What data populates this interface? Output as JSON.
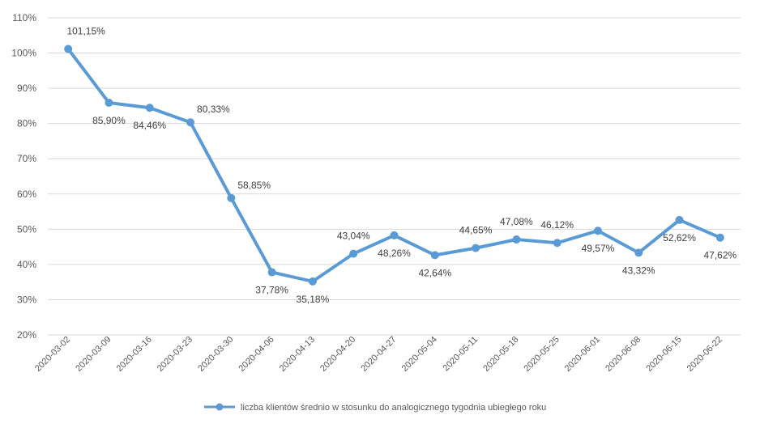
{
  "chart_data": {
    "type": "line",
    "title": "",
    "xlabel": "",
    "ylabel": "",
    "categories": [
      "2020-03-02",
      "2020-03-09",
      "2020-03-16",
      "2020-03-23",
      "2020-03-30",
      "2020-04-06",
      "2020-04-13",
      "2020-04-20",
      "2020-04-27",
      "2020-05-04",
      "2020-05-11",
      "2020-05-18",
      "2020-05-25",
      "2020-06-01",
      "2020-06-08",
      "2020-06-15",
      "2020-06-22"
    ],
    "series": [
      {
        "name": "liczba klientów średnio w stosunku do analogicznego tygodnia ubiegłego roku",
        "color": "#5b9bd5",
        "values": [
          101.15,
          85.9,
          84.46,
          80.33,
          58.85,
          37.78,
          35.18,
          43.04,
          48.26,
          42.64,
          44.65,
          47.08,
          46.12,
          49.57,
          43.32,
          52.62,
          47.62
        ],
        "labels": [
          "101,15%",
          "85,90%",
          "84,46%",
          "80,33%",
          "58,85%",
          "37,78%",
          "35,18%",
          "43,04%",
          "48,26%",
          "42,64%",
          "44,65%",
          "47,08%",
          "46,12%",
          "49,57%",
          "43,32%",
          "52,62%",
          "47,62%"
        ]
      }
    ],
    "ylim": [
      20,
      110
    ],
    "yticks": [
      20,
      30,
      40,
      50,
      60,
      70,
      80,
      90,
      100,
      110
    ],
    "ytick_labels": [
      "20%",
      "30%",
      "40%",
      "50%",
      "60%",
      "70%",
      "80%",
      "90%",
      "100%",
      "110%"
    ],
    "grid": true,
    "legend_position": "bottom"
  }
}
